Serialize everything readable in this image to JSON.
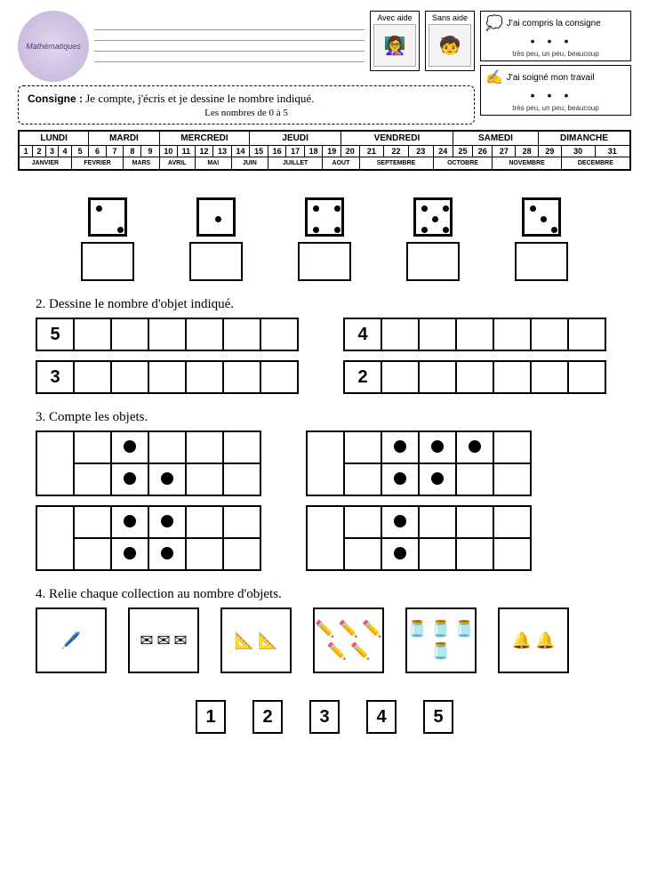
{
  "header": {
    "subject": "Mathématiques",
    "logo_bg": "#c2b2d8",
    "avec_aide": "Avec aide",
    "sans_aide": "Sans aide"
  },
  "eval1": {
    "title": "J'ai compris la consigne",
    "sub": "très peu, un peu, beaucoup"
  },
  "eval2": {
    "title": "J'ai soigné mon travail",
    "sub": "très peu, un peu, beaucoup"
  },
  "consigne": {
    "label": "Consigne :",
    "text": "Je compte, j'écris et je dessine le nombre indiqué.",
    "sub": "Les nombres de 0 à 5"
  },
  "calendar": {
    "days": [
      "LUNDI",
      "MARDI",
      "MERCREDI",
      "JEUDI",
      "VENDREDI",
      "SAMEDI",
      "DIMANCHE"
    ],
    "daySpans": [
      5,
      4,
      5,
      5,
      5,
      4,
      4
    ],
    "numbers": [
      "1",
      "2",
      "3",
      "4",
      "5",
      "6",
      "7",
      "8",
      "9",
      "10",
      "11",
      "12",
      "13",
      "14",
      "15",
      "16",
      "17",
      "18",
      "19",
      "20",
      "21",
      "22",
      "23",
      "24",
      "25",
      "26",
      "27",
      "28",
      "29",
      "30",
      "31"
    ],
    "months": [
      "JANVIER",
      "FEVRIER",
      "MARS",
      "AVRIL",
      "MAI",
      "JUIN",
      "JUILLET",
      "AOUT",
      "SEPTEMBRE",
      "OCTOBRE",
      "NOVEMBRE",
      "DECEMBRE"
    ],
    "monthSpans": [
      4,
      3,
      2,
      2,
      2,
      2,
      3,
      2,
      3,
      3,
      3,
      3
    ]
  },
  "ex1_dice": [
    2,
    1,
    4,
    5,
    3
  ],
  "ex2": {
    "title": "2. Dessine le nombre d'objet indiqué.",
    "rows": [
      [
        5,
        4
      ],
      [
        3,
        2
      ]
    ]
  },
  "ex3": {
    "title": "3. Compte les objets.",
    "frames": [
      {
        "cells": [
          [
            0,
            1,
            0,
            0,
            0
          ],
          [
            0,
            1,
            1,
            0,
            0
          ]
        ]
      },
      {
        "cells": [
          [
            0,
            1,
            1,
            1,
            0
          ],
          [
            0,
            1,
            1,
            0,
            0
          ]
        ]
      },
      {
        "cells": [
          [
            0,
            1,
            1,
            0,
            0
          ],
          [
            0,
            1,
            1,
            0,
            0
          ]
        ]
      },
      {
        "cells": [
          [
            0,
            1,
            0,
            0,
            0
          ],
          [
            0,
            1,
            0,
            0,
            0
          ]
        ]
      }
    ]
  },
  "ex4": {
    "title": "4. Relie chaque collection au nombre d'objets.",
    "collections": [
      {
        "glyph": "🖊️",
        "count": 1
      },
      {
        "glyph": "✉",
        "count": 3
      },
      {
        "glyph": "📐",
        "count": 2
      },
      {
        "glyph": "✏️",
        "count": 5
      },
      {
        "glyph": "🫙",
        "count": 4
      },
      {
        "glyph": "🔔",
        "count": 2
      }
    ],
    "numbers": [
      "1",
      "2",
      "3",
      "4",
      "5"
    ]
  }
}
